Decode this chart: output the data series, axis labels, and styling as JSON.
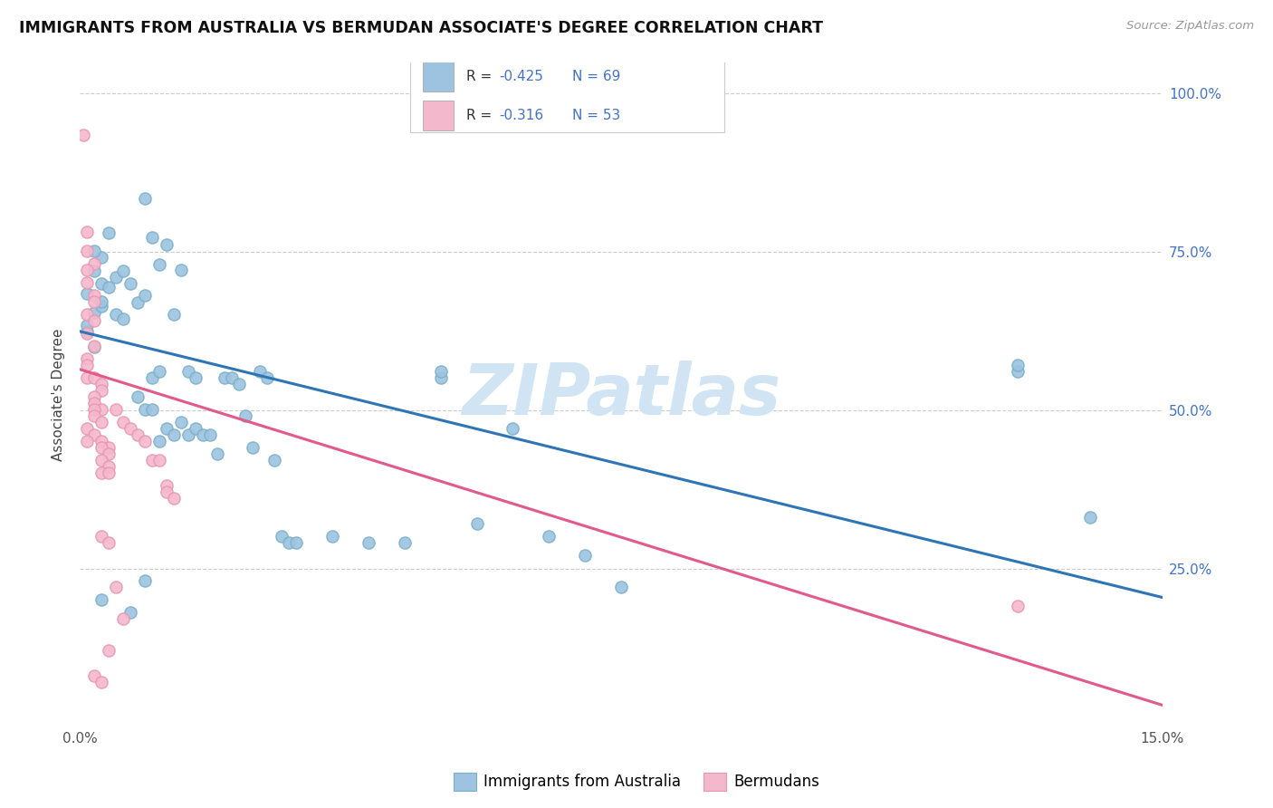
{
  "title": "IMMIGRANTS FROM AUSTRALIA VS BERMUDAN ASSOCIATE'S DEGREE CORRELATION CHART",
  "source": "Source: ZipAtlas.com",
  "ylabel": "Associate's Degree",
  "legend_blue_label": "Immigrants from Australia",
  "legend_pink_label": "Bermudans",
  "legend_blue_R_val": "-0.425",
  "legend_blue_N": "N = 69",
  "legend_pink_R_val": "-0.316",
  "legend_pink_N": "N = 53",
  "blue_color": "#9dc3e0",
  "pink_color": "#f4b8cc",
  "blue_edge_color": "#7aafc8",
  "pink_edge_color": "#e896b0",
  "blue_line_color": "#2e75b6",
  "pink_line_color": "#e05a8a",
  "blue_scatter": [
    [
      0.001,
      0.625
    ],
    [
      0.002,
      0.655
    ],
    [
      0.003,
      0.7
    ],
    [
      0.001,
      0.685
    ],
    [
      0.002,
      0.72
    ],
    [
      0.003,
      0.665
    ],
    [
      0.004,
      0.78
    ],
    [
      0.002,
      0.6
    ],
    [
      0.001,
      0.635
    ],
    [
      0.003,
      0.742
    ],
    [
      0.002,
      0.752
    ],
    [
      0.004,
      0.695
    ],
    [
      0.003,
      0.672
    ],
    [
      0.005,
      0.71
    ],
    [
      0.006,
      0.72
    ],
    [
      0.007,
      0.7
    ],
    [
      0.008,
      0.67
    ],
    [
      0.005,
      0.652
    ],
    [
      0.006,
      0.645
    ],
    [
      0.009,
      0.835
    ],
    [
      0.01,
      0.773
    ],
    [
      0.012,
      0.762
    ],
    [
      0.011,
      0.73
    ],
    [
      0.013,
      0.652
    ],
    [
      0.009,
      0.682
    ],
    [
      0.014,
      0.722
    ],
    [
      0.015,
      0.562
    ],
    [
      0.016,
      0.552
    ],
    [
      0.01,
      0.552
    ],
    [
      0.011,
      0.562
    ],
    [
      0.012,
      0.472
    ],
    [
      0.013,
      0.462
    ],
    [
      0.014,
      0.482
    ],
    [
      0.015,
      0.462
    ],
    [
      0.016,
      0.472
    ],
    [
      0.017,
      0.462
    ],
    [
      0.018,
      0.462
    ],
    [
      0.019,
      0.432
    ],
    [
      0.02,
      0.552
    ],
    [
      0.021,
      0.552
    ],
    [
      0.022,
      0.542
    ],
    [
      0.008,
      0.522
    ],
    [
      0.009,
      0.502
    ],
    [
      0.01,
      0.502
    ],
    [
      0.011,
      0.452
    ],
    [
      0.023,
      0.492
    ],
    [
      0.025,
      0.562
    ],
    [
      0.026,
      0.552
    ],
    [
      0.024,
      0.442
    ],
    [
      0.027,
      0.422
    ],
    [
      0.028,
      0.302
    ],
    [
      0.029,
      0.292
    ],
    [
      0.03,
      0.292
    ],
    [
      0.035,
      0.302
    ],
    [
      0.04,
      0.292
    ],
    [
      0.045,
      0.292
    ],
    [
      0.05,
      0.552
    ],
    [
      0.05,
      0.562
    ],
    [
      0.06,
      0.472
    ],
    [
      0.065,
      0.302
    ],
    [
      0.055,
      0.322
    ],
    [
      0.07,
      0.272
    ],
    [
      0.075,
      0.222
    ],
    [
      0.003,
      0.202
    ],
    [
      0.007,
      0.182
    ],
    [
      0.009,
      0.232
    ],
    [
      0.13,
      0.562
    ],
    [
      0.13,
      0.572
    ],
    [
      0.14,
      0.332
    ]
  ],
  "pink_scatter": [
    [
      0.0005,
      0.935
    ],
    [
      0.001,
      0.782
    ],
    [
      0.001,
      0.752
    ],
    [
      0.002,
      0.732
    ],
    [
      0.001,
      0.722
    ],
    [
      0.001,
      0.702
    ],
    [
      0.002,
      0.682
    ],
    [
      0.002,
      0.672
    ],
    [
      0.001,
      0.652
    ],
    [
      0.002,
      0.642
    ],
    [
      0.001,
      0.622
    ],
    [
      0.002,
      0.602
    ],
    [
      0.001,
      0.582
    ],
    [
      0.001,
      0.572
    ],
    [
      0.001,
      0.552
    ],
    [
      0.002,
      0.552
    ],
    [
      0.003,
      0.542
    ],
    [
      0.003,
      0.532
    ],
    [
      0.002,
      0.522
    ],
    [
      0.002,
      0.512
    ],
    [
      0.003,
      0.502
    ],
    [
      0.002,
      0.502
    ],
    [
      0.002,
      0.492
    ],
    [
      0.003,
      0.482
    ],
    [
      0.001,
      0.472
    ],
    [
      0.002,
      0.462
    ],
    [
      0.001,
      0.452
    ],
    [
      0.003,
      0.452
    ],
    [
      0.004,
      0.442
    ],
    [
      0.003,
      0.442
    ],
    [
      0.004,
      0.432
    ],
    [
      0.003,
      0.422
    ],
    [
      0.004,
      0.412
    ],
    [
      0.003,
      0.402
    ],
    [
      0.004,
      0.402
    ],
    [
      0.005,
      0.502
    ],
    [
      0.006,
      0.482
    ],
    [
      0.007,
      0.472
    ],
    [
      0.008,
      0.462
    ],
    [
      0.009,
      0.452
    ],
    [
      0.01,
      0.422
    ],
    [
      0.011,
      0.422
    ],
    [
      0.012,
      0.382
    ],
    [
      0.012,
      0.372
    ],
    [
      0.013,
      0.362
    ],
    [
      0.003,
      0.302
    ],
    [
      0.004,
      0.292
    ],
    [
      0.005,
      0.222
    ],
    [
      0.006,
      0.172
    ],
    [
      0.004,
      0.122
    ],
    [
      0.13,
      0.192
    ],
    [
      0.002,
      0.082
    ],
    [
      0.003,
      0.072
    ]
  ],
  "blue_line_x": [
    0.0,
    0.15
  ],
  "blue_line_y": [
    0.625,
    0.205
  ],
  "pink_line_x": [
    0.0,
    0.15
  ],
  "pink_line_y": [
    0.565,
    0.035
  ],
  "xmin": 0.0,
  "xmax": 0.15,
  "ymin": 0.0,
  "ymax": 1.05,
  "watermark": "ZIPatlas",
  "watermark_color": "#d0e4f4",
  "legend_text_color": "#4472c4",
  "legend_R_label_color": "#333333"
}
